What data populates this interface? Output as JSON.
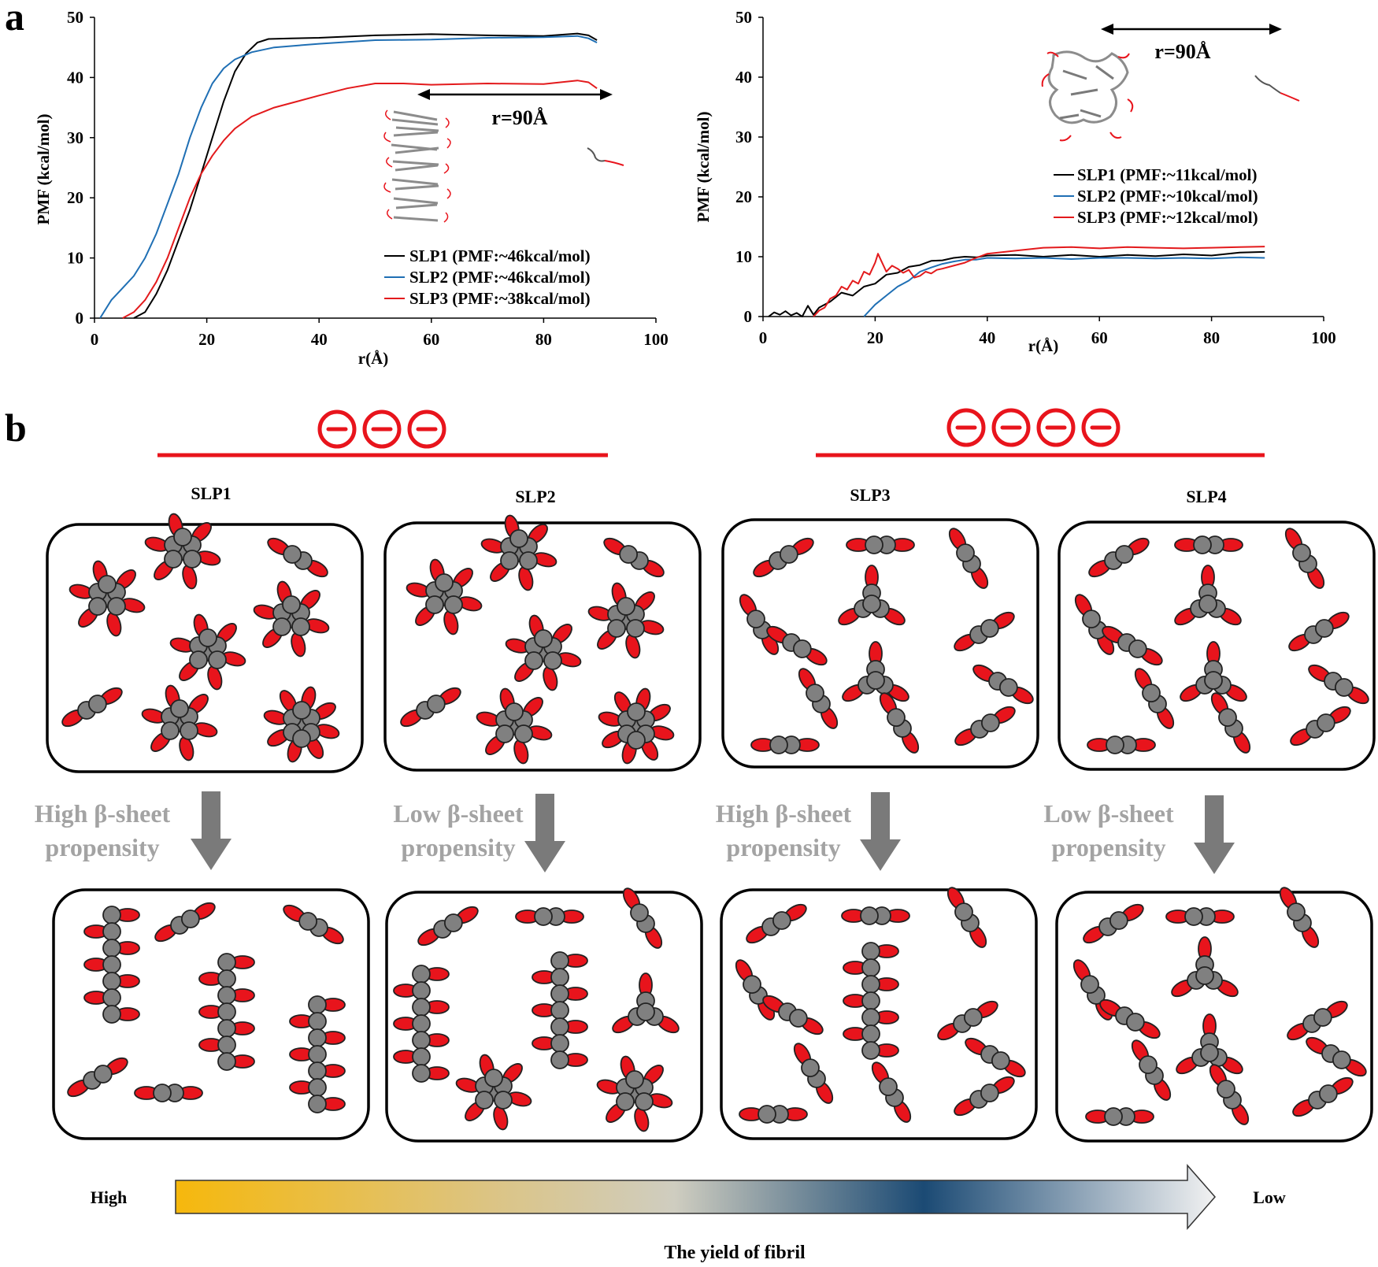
{
  "panel_a_label": "a",
  "panel_b_label": "b",
  "chart_data": [
    {
      "type": "line",
      "xlabel": "r(Å)",
      "ylabel": "PMF (kcal/mol)",
      "xlim": [
        0,
        100
      ],
      "ylim": [
        0,
        50
      ],
      "xticks": [
        0,
        20,
        40,
        60,
        80,
        100
      ],
      "yticks": [
        0,
        10,
        20,
        30,
        40,
        50
      ],
      "grid": false,
      "legend_position": "bottom-right",
      "annotation": "r=90Å",
      "series": [
        {
          "name": "SLP1 (PMF:~46kcal/mol)",
          "color": "#000000",
          "x": [
            7,
            9,
            11,
            13,
            15,
            17,
            19,
            21,
            23,
            25,
            27,
            29,
            31,
            35,
            40,
            50,
            60,
            70,
            80,
            86,
            88,
            89.5
          ],
          "y": [
            0,
            1,
            4,
            8,
            13,
            18,
            24,
            30,
            36,
            41,
            44,
            45.8,
            46.4,
            46.5,
            46.6,
            47,
            47.2,
            47,
            46.9,
            47.3,
            47,
            46.2
          ]
        },
        {
          "name": "SLP2 (PMF:~46kcal/mol)",
          "color": "#1f6fb4",
          "x": [
            1,
            3,
            5,
            7,
            9,
            11,
            13,
            15,
            17,
            19,
            21,
            23,
            25,
            28,
            32,
            40,
            50,
            60,
            70,
            80,
            86,
            88,
            89.5
          ],
          "y": [
            0,
            3,
            5,
            7,
            10,
            14,
            19,
            24,
            30,
            35,
            39,
            41.5,
            43,
            44.2,
            45,
            45.6,
            46.2,
            46.3,
            46.6,
            46.7,
            46.9,
            46.5,
            45.8
          ]
        },
        {
          "name": "SLP3 (PMF:~38kcal/mol)",
          "color": "#e31a1c",
          "x": [
            5,
            7,
            9,
            11,
            13,
            15,
            17,
            19,
            21,
            23,
            25,
            28,
            32,
            36,
            40,
            45,
            50,
            55,
            60,
            70,
            80,
            86,
            88,
            89.5
          ],
          "y": [
            0,
            1,
            3,
            6,
            10,
            15,
            20,
            24,
            27,
            29.5,
            31.5,
            33.5,
            35,
            36,
            37,
            38.2,
            39,
            39,
            38.8,
            39,
            38.9,
            39.5,
            39.2,
            38.2
          ]
        }
      ]
    },
    {
      "type": "line",
      "xlabel": "r(Å)",
      "ylabel": "PMF (kcal/mol)",
      "xlim": [
        0,
        100
      ],
      "ylim": [
        0,
        50
      ],
      "xticks": [
        0,
        20,
        40,
        60,
        80,
        100
      ],
      "yticks": [
        0,
        10,
        20,
        30,
        40,
        50
      ],
      "grid": false,
      "legend_position": "top-right",
      "annotation": "r=90Å",
      "series": [
        {
          "name": "SLP1 (PMF:~11kcal/mol)",
          "color": "#000000",
          "x": [
            1,
            2,
            3,
            4,
            5,
            6,
            7,
            8,
            9,
            10,
            12,
            14,
            16,
            18,
            20,
            22,
            24,
            26,
            28,
            30,
            32,
            34,
            36,
            38,
            40,
            45,
            50,
            55,
            60,
            65,
            70,
            75,
            80,
            85,
            89.5
          ],
          "y": [
            0,
            0.7,
            0.3,
            0.9,
            0.2,
            0.6,
            0,
            1.8,
            0.3,
            1.5,
            2.5,
            4,
            3.5,
            5,
            5.5,
            7,
            7.3,
            8.3,
            8.6,
            9.3,
            9.4,
            9.8,
            10,
            9.9,
            10.2,
            10.3,
            10,
            10.3,
            10,
            10.3,
            10.1,
            10.4,
            10.2,
            10.7,
            10.8
          ]
        },
        {
          "name": "SLP2 (PMF:~10kcal/mol)",
          "color": "#1f6fb4",
          "x": [
            18,
            20,
            22,
            24,
            26,
            28,
            30,
            32,
            34,
            36,
            38,
            40,
            45,
            50,
            55,
            60,
            65,
            70,
            75,
            80,
            85,
            89.5
          ],
          "y": [
            0,
            2,
            3.5,
            5,
            6,
            7.5,
            8.2,
            8.8,
            9.2,
            9.5,
            9.5,
            9.8,
            9.7,
            9.8,
            9.6,
            9.8,
            9.8,
            9.7,
            9.8,
            9.7,
            9.9,
            9.8
          ]
        },
        {
          "name": "SLP3 (PMF:~12kcal/mol)",
          "color": "#e31a1c",
          "x": [
            9,
            10,
            11,
            12,
            13,
            14,
            15,
            16,
            17,
            18,
            19,
            20,
            20.5,
            21,
            22,
            23,
            24,
            25,
            26,
            27,
            28,
            29,
            30,
            31,
            32,
            34,
            36,
            38,
            40,
            45,
            50,
            55,
            60,
            65,
            70,
            75,
            80,
            85,
            89.5
          ],
          "y": [
            0,
            1,
            1.5,
            3,
            3.5,
            5,
            4.5,
            6,
            5.5,
            7.5,
            7,
            9,
            10.5,
            9.5,
            7.5,
            8.5,
            8,
            7.3,
            7.8,
            6.5,
            6.8,
            7.5,
            7.2,
            7.8,
            8,
            8.5,
            9,
            9.8,
            10.5,
            11,
            11.5,
            11.6,
            11.4,
            11.6,
            11.5,
            11.4,
            11.5,
            11.6,
            11.7
          ]
        }
      ]
    }
  ],
  "panel_b": {
    "groups": [
      {
        "charge_symbols": [
          "⊖",
          "⊖",
          "⊖"
        ],
        "labels": [
          "SLP1",
          "SLP2"
        ]
      },
      {
        "charge_symbols": [
          "⊖",
          "⊖",
          "⊖",
          "⊖"
        ],
        "labels": [
          "SLP3",
          "SLP4"
        ]
      }
    ],
    "columns": [
      {
        "label": "SLP1",
        "propensity_lines": [
          "High β-sheet",
          "propensity"
        ]
      },
      {
        "label": "SLP2",
        "propensity_lines": [
          "Low β-sheet",
          "propensity"
        ]
      },
      {
        "label": "SLP3",
        "propensity_lines": [
          "High β-sheet",
          "propensity"
        ]
      },
      {
        "label": "SLP4",
        "propensity_lines": [
          "Low β-sheet",
          "propensity"
        ]
      }
    ],
    "yield_high": "High",
    "yield_low": "Low",
    "yield_title": "The yield of fibril",
    "colors": {
      "charge": "#e8141c",
      "bead": "#808080",
      "tail": "#e8141c",
      "arrow": "#7a7a7a",
      "gradient": [
        "#f5b80e",
        "#d8c98f",
        "#1b456f",
        "#ffffff"
      ]
    }
  }
}
